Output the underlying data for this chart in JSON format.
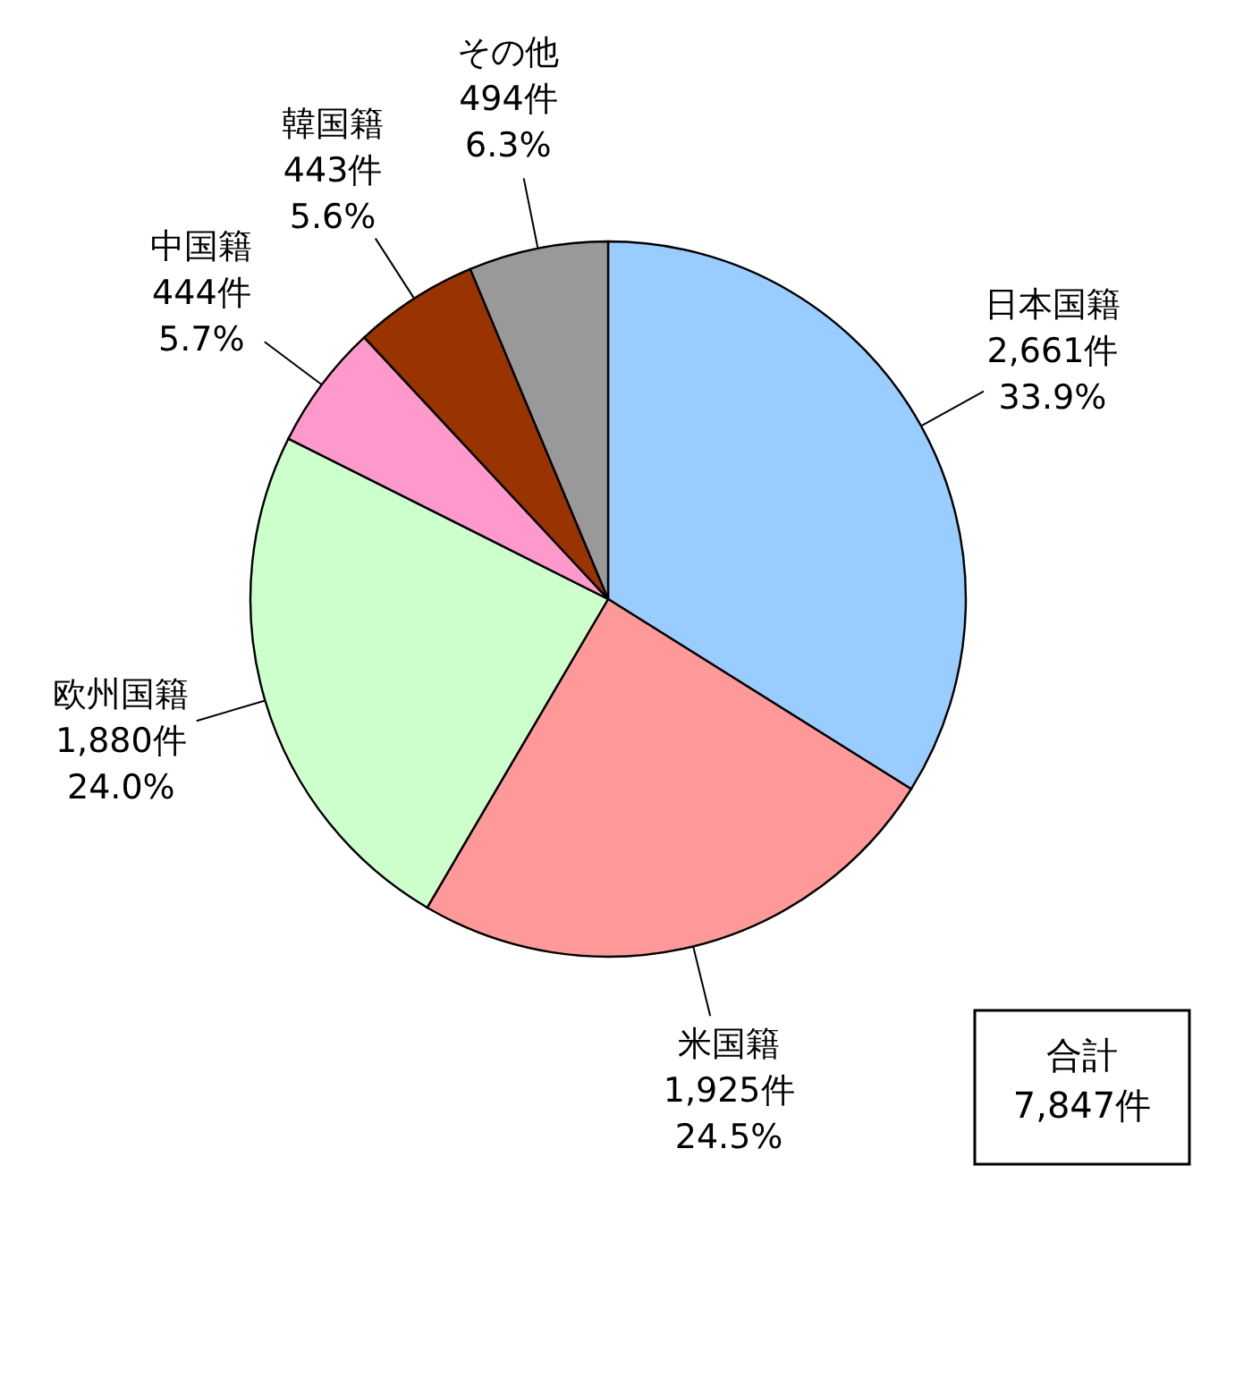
{
  "chart_data": {
    "type": "pie",
    "categories": [
      "日本国籍",
      "米国籍",
      "欧州国籍",
      "中国籍",
      "韓国籍",
      "その他"
    ],
    "values": [
      2661,
      1925,
      1880,
      444,
      443,
      494
    ],
    "value_labels": [
      "2,661件\n33.9%",
      "1,925件\n24.5%",
      "1,880件\n24.0%",
      "444件\n5.7%",
      "443件\n5.6%",
      "494件\n6.3%"
    ],
    "colors": [
      "#99ccff",
      "#ff9999",
      "#ccffcc",
      "#ff99cc",
      "#993300",
      "#999999"
    ],
    "annotations": [
      "合計\n7,847件"
    ]
  }
}
